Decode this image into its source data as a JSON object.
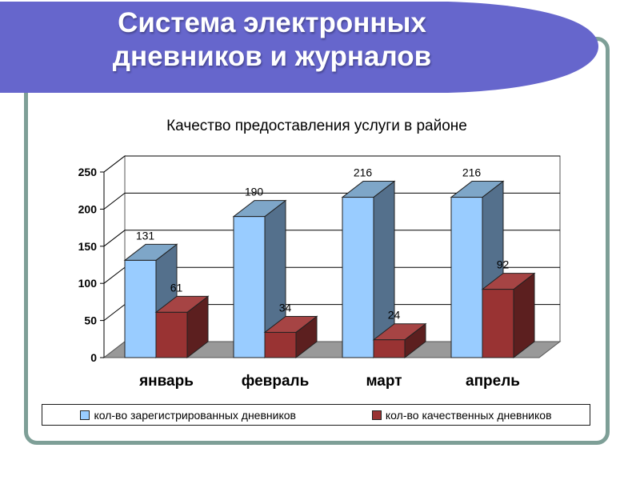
{
  "slide": {
    "title_line1": "Система электронных",
    "title_line2": "дневников и журналов"
  },
  "colors": {
    "banner": "#6666cc",
    "frame": "#7e9f97",
    "series_registered": "#99ccff",
    "series_quality": "#993333",
    "floor": "#999999",
    "gridline": "#000000"
  },
  "chart_data": {
    "type": "bar",
    "title": "Качество предоставления услуги в районе",
    "categories": [
      "январь",
      "февраль",
      "март",
      "апрель"
    ],
    "series": [
      {
        "name": "кол-во зарегистрированных дневников",
        "values": [
          131,
          190,
          216,
          216
        ]
      },
      {
        "name": "кол-во качественных дневников",
        "values": [
          61,
          34,
          24,
          92
        ]
      }
    ],
    "y_ticks": [
      "0",
      "50",
      "100",
      "150",
      "200",
      "250"
    ],
    "ylim": [
      0,
      250
    ],
    "grid": true,
    "three_d": true,
    "legend_position": "bottom",
    "data_labels": true
  }
}
